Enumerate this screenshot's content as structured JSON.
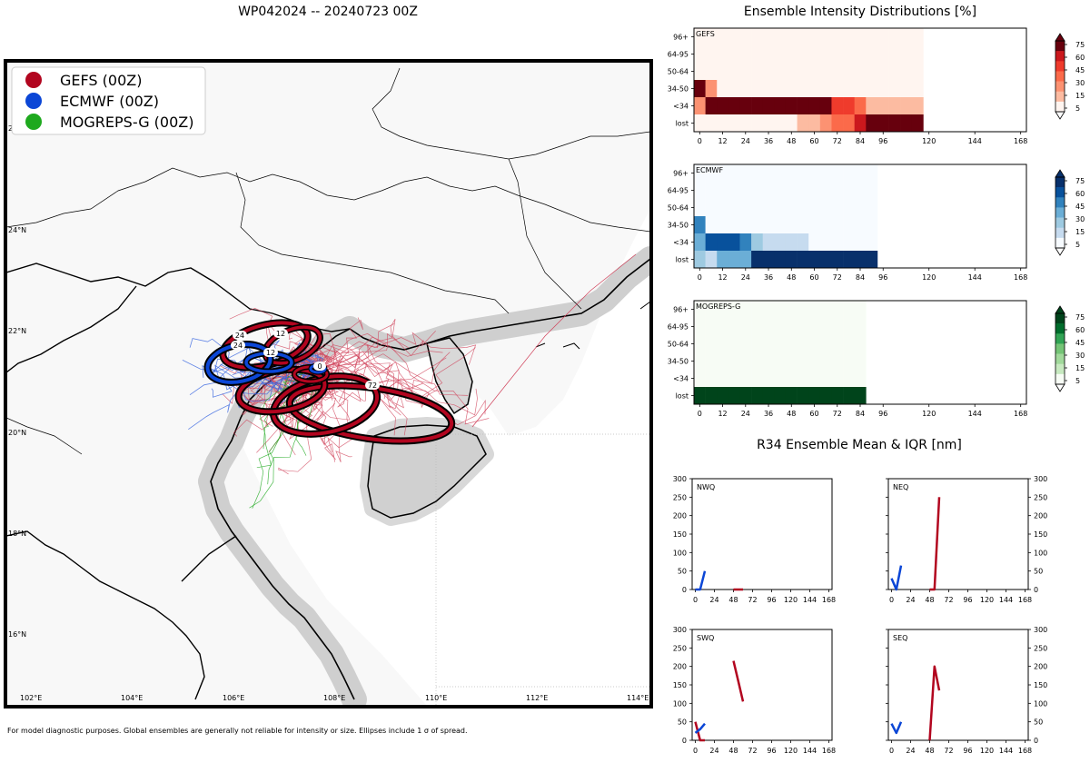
{
  "title": "WP042024 -- 20240723 00Z",
  "footer": "For model diagnostic purposes. Global ensembles are generally not reliable for intensity or size. Ellipses include 1 σ of spread.",
  "map": {
    "lon_labels": [
      "102°E",
      "104°E",
      "106°E",
      "108°E",
      "110°E",
      "112°E",
      "114°E"
    ],
    "lat_labels": [
      "26°N",
      "24°N",
      "22°N",
      "20°N",
      "18°N",
      "16°N"
    ],
    "legend": [
      {
        "name": "GEFS (00Z)",
        "color": "#b2051f"
      },
      {
        "name": "ECMWF (00Z)",
        "color": "#0b46d6"
      },
      {
        "name": "MOGREPS-G (00Z)",
        "color": "#1ea91e"
      }
    ],
    "ellipse_labels": [
      "0",
      "12",
      "12",
      "24",
      "24",
      "72"
    ]
  },
  "intensity": {
    "title": "Ensemble Intensity Distributions [%]",
    "y_categories": [
      "96+",
      "64-95",
      "50-64",
      "34-50",
      "<34",
      "lost"
    ],
    "x_ticks": [
      "0",
      "12",
      "24",
      "36",
      "48",
      "60",
      "72",
      "84",
      "96",
      "120",
      "144",
      "168"
    ],
    "colorbar_ticks": [
      "75",
      "60",
      "45",
      "30",
      "15",
      "5"
    ],
    "panels": [
      {
        "name": "GEFS",
        "palette": "red"
      },
      {
        "name": "ECMWF",
        "palette": "blue"
      },
      {
        "name": "MOGREPS-G",
        "palette": "green"
      }
    ]
  },
  "r34": {
    "title": "R34 Ensemble Mean & IQR [nm]",
    "y_ticks": [
      "300",
      "250",
      "200",
      "150",
      "100",
      "50",
      "0"
    ],
    "x_ticks": [
      "0",
      "24",
      "48",
      "72",
      "96",
      "120",
      "144",
      "168"
    ],
    "quadrants": [
      "NWQ",
      "NEQ",
      "SWQ",
      "SEQ"
    ]
  },
  "chart_data": [
    {
      "type": "heatmap",
      "title": "Ensemble Intensity Distributions [%] - GEFS",
      "x_hours": [
        0,
        6,
        12,
        18,
        24,
        30,
        36,
        42,
        48,
        54,
        60,
        66,
        72,
        78,
        84,
        90,
        96,
        102,
        108,
        114
      ],
      "y_categories": [
        "96+",
        "64-95",
        "50-64",
        "34-50",
        "<34",
        "lost"
      ],
      "values": [
        [
          1,
          1,
          1,
          1,
          1,
          1,
          1,
          1,
          1,
          1,
          1,
          1,
          1,
          1,
          1,
          1,
          1,
          1,
          1,
          1
        ],
        [
          1,
          1,
          1,
          1,
          1,
          1,
          1,
          1,
          1,
          1,
          1,
          1,
          1,
          1,
          1,
          1,
          1,
          1,
          1,
          1
        ],
        [
          1,
          1,
          1,
          1,
          1,
          1,
          1,
          1,
          1,
          1,
          1,
          1,
          1,
          1,
          1,
          1,
          1,
          1,
          1,
          1
        ],
        [
          90,
          25,
          1,
          1,
          1,
          1,
          1,
          1,
          1,
          1,
          1,
          1,
          1,
          1,
          1,
          1,
          1,
          1,
          1,
          1
        ],
        [
          20,
          95,
          95,
          95,
          95,
          95,
          95,
          95,
          95,
          95,
          95,
          80,
          55,
          55,
          30,
          10,
          10,
          10,
          10,
          10
        ],
        [
          1,
          1,
          1,
          1,
          1,
          1,
          1,
          1,
          1,
          5,
          10,
          20,
          35,
          35,
          60,
          90,
          90,
          90,
          90,
          90
        ]
      ]
    },
    {
      "type": "heatmap",
      "title": "Ensemble Intensity Distributions [%] - ECMWF",
      "x_hours": [
        0,
        6,
        12,
        18,
        24,
        30,
        36,
        42,
        48,
        54,
        60,
        66,
        72,
        78,
        84,
        90
      ],
      "y_categories": [
        "96+",
        "64-95",
        "50-64",
        "34-50",
        "<34",
        "lost"
      ],
      "values": [
        [
          1,
          1,
          1,
          1,
          1,
          1,
          1,
          1,
          1,
          1,
          1,
          1,
          1,
          1,
          1,
          1
        ],
        [
          1,
          1,
          1,
          1,
          1,
          1,
          1,
          1,
          1,
          1,
          1,
          1,
          1,
          1,
          1,
          1
        ],
        [
          1,
          1,
          1,
          1,
          1,
          1,
          1,
          1,
          1,
          1,
          1,
          1,
          1,
          1,
          1,
          1
        ],
        [
          50,
          1,
          1,
          1,
          1,
          1,
          1,
          1,
          1,
          1,
          1,
          1,
          1,
          1,
          1,
          1
        ],
        [
          30,
          65,
          65,
          65,
          45,
          18,
          12,
          12,
          12,
          12,
          1,
          1,
          1,
          1,
          1,
          1
        ],
        [
          15,
          10,
          30,
          30,
          30,
          90,
          90,
          90,
          90,
          90,
          90,
          90,
          90,
          90,
          90,
          90
        ]
      ]
    },
    {
      "type": "heatmap",
      "title": "Ensemble Intensity Distributions [%] - MOGREPS-G",
      "x_hours": [
        0,
        6,
        12,
        18,
        24,
        30,
        36,
        42,
        48,
        54,
        60,
        66,
        72,
        78,
        84
      ],
      "y_categories": [
        "96+",
        "64-95",
        "50-64",
        "34-50",
        "<34",
        "lost"
      ],
      "values": [
        [
          1,
          1,
          1,
          1,
          1,
          1,
          1,
          1,
          1,
          1,
          1,
          1,
          1,
          1,
          1
        ],
        [
          1,
          1,
          1,
          1,
          1,
          1,
          1,
          1,
          1,
          1,
          1,
          1,
          1,
          1,
          1
        ],
        [
          1,
          1,
          1,
          1,
          1,
          1,
          1,
          1,
          1,
          1,
          1,
          1,
          1,
          1,
          1
        ],
        [
          1,
          1,
          1,
          1,
          1,
          1,
          1,
          1,
          1,
          1,
          1,
          1,
          1,
          1,
          1
        ],
        [
          1,
          1,
          1,
          1,
          1,
          1,
          1,
          1,
          1,
          1,
          1,
          1,
          1,
          1,
          1
        ],
        [
          95,
          95,
          95,
          95,
          95,
          95,
          95,
          95,
          95,
          95,
          95,
          95,
          95,
          95,
          95
        ]
      ]
    },
    {
      "type": "line",
      "title": "R34 Ensemble Mean & IQR [nm] - NWQ",
      "xlim": [
        0,
        168
      ],
      "ylim": [
        0,
        300
      ],
      "series": [
        {
          "name": "GEFS",
          "x": [
            48,
            60
          ],
          "y": [
            0,
            0
          ]
        },
        {
          "name": "ECMWF",
          "x": [
            0,
            6,
            12
          ],
          "y": [
            0,
            0,
            50
          ]
        }
      ]
    },
    {
      "type": "line",
      "title": "R34 Ensemble Mean & IQR [nm] - NEQ",
      "xlim": [
        0,
        168
      ],
      "ylim": [
        0,
        300
      ],
      "series": [
        {
          "name": "GEFS",
          "x": [
            48,
            54,
            60
          ],
          "y": [
            0,
            0,
            250
          ]
        },
        {
          "name": "ECMWF",
          "x": [
            0,
            6,
            12
          ],
          "y": [
            30,
            0,
            65
          ]
        }
      ]
    },
    {
      "type": "line",
      "title": "R34 Ensemble Mean & IQR [nm] - SWQ",
      "xlim": [
        0,
        168
      ],
      "ylim": [
        0,
        300
      ],
      "series": [
        {
          "name": "GEFS",
          "x": [
            0,
            6,
            12,
            48,
            54,
            60
          ],
          "y": [
            50,
            0,
            0,
            215,
            160,
            105
          ]
        },
        {
          "name": "ECMWF",
          "x": [
            0,
            6,
            12
          ],
          "y": [
            20,
            30,
            45
          ]
        }
      ]
    },
    {
      "type": "line",
      "title": "R34 Ensemble Mean & IQR [nm] - SEQ",
      "xlim": [
        0,
        168
      ],
      "ylim": [
        0,
        300
      ],
      "series": [
        {
          "name": "GEFS",
          "x": [
            48,
            54,
            60
          ],
          "y": [
            0,
            200,
            135
          ]
        },
        {
          "name": "ECMWF",
          "x": [
            0,
            6,
            12
          ],
          "y": [
            45,
            20,
            50
          ]
        }
      ]
    }
  ]
}
